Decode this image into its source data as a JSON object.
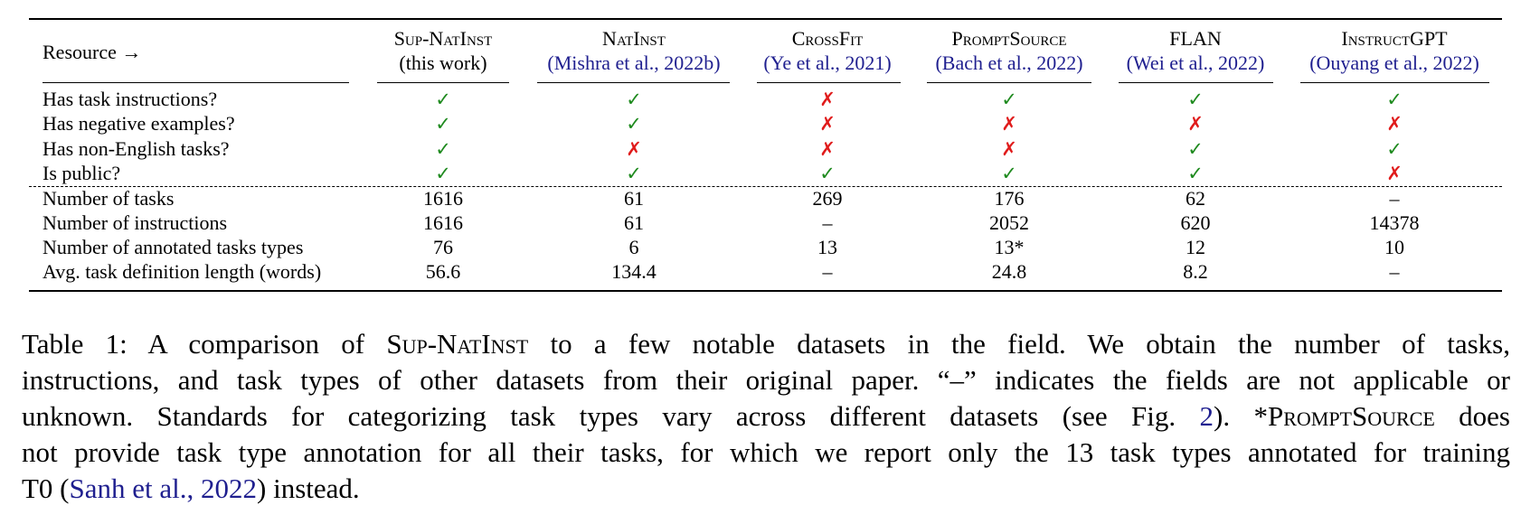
{
  "table": {
    "corner": "Resource →",
    "columns": [
      {
        "name": "Sup-NatInst",
        "sub": "(this work)"
      },
      {
        "name": "NatInst",
        "sub": "(Mishra et al., 2022b)"
      },
      {
        "name": "CrossFit",
        "sub": "(Ye et al., 2021)"
      },
      {
        "name": "PromptSource",
        "sub": "(Bach et al., 2022)"
      },
      {
        "name": "FLAN",
        "sub": "(Wei et al., 2022)"
      },
      {
        "name": "InstructGPT",
        "sub": "(Ouyang et al., 2022)"
      }
    ],
    "rows": [
      {
        "label": "Has task instructions?",
        "cells": [
          "✓",
          "✓",
          "✗",
          "✓",
          "✓",
          "✓"
        ]
      },
      {
        "label": "Has negative examples?",
        "cells": [
          "✓",
          "✓",
          "✗",
          "✗",
          "✗",
          "✗"
        ]
      },
      {
        "label": "Has non-English tasks?",
        "cells": [
          "✓",
          "✗",
          "✗",
          "✗",
          "✓",
          "✓"
        ]
      },
      {
        "label": "Is public?",
        "cells": [
          "✓",
          "✓",
          "✓",
          "✓",
          "✓",
          "✗"
        ]
      },
      {
        "label": "Number of tasks",
        "cells": [
          "1616",
          "61",
          "269",
          "176",
          "62",
          "–"
        ]
      },
      {
        "label": "Number of instructions",
        "cells": [
          "1616",
          "61",
          "–",
          "2052",
          "620",
          "14378"
        ]
      },
      {
        "label": "Number of annotated tasks types",
        "cells": [
          "76",
          "6",
          "13",
          "13*",
          "12",
          "10"
        ]
      },
      {
        "label": "Avg. task definition length (words)",
        "cells": [
          "56.6",
          "134.4",
          "–",
          "24.8",
          "8.2",
          "–"
        ]
      }
    ]
  },
  "caption": {
    "lines": [
      [
        "Table 1: A comparison of ",
        "Sup-NatInst",
        " to a few notable datasets in the field. We obtain the number of tasks,"
      ],
      [
        "instructions, and task types of other datasets from their original paper. “–” indicates the fields are not applicable or"
      ],
      [
        "unknown. Standards for categorizing task types vary across different datasets (see Fig. ",
        "2",
        "). *",
        "PromptSource",
        " does"
      ],
      [
        "not provide task type annotation for all their tasks, for which we report only the 13 task types annotated for training"
      ],
      [
        "T0 (",
        "Sanh et al., 2022",
        ") instead."
      ]
    ]
  }
}
